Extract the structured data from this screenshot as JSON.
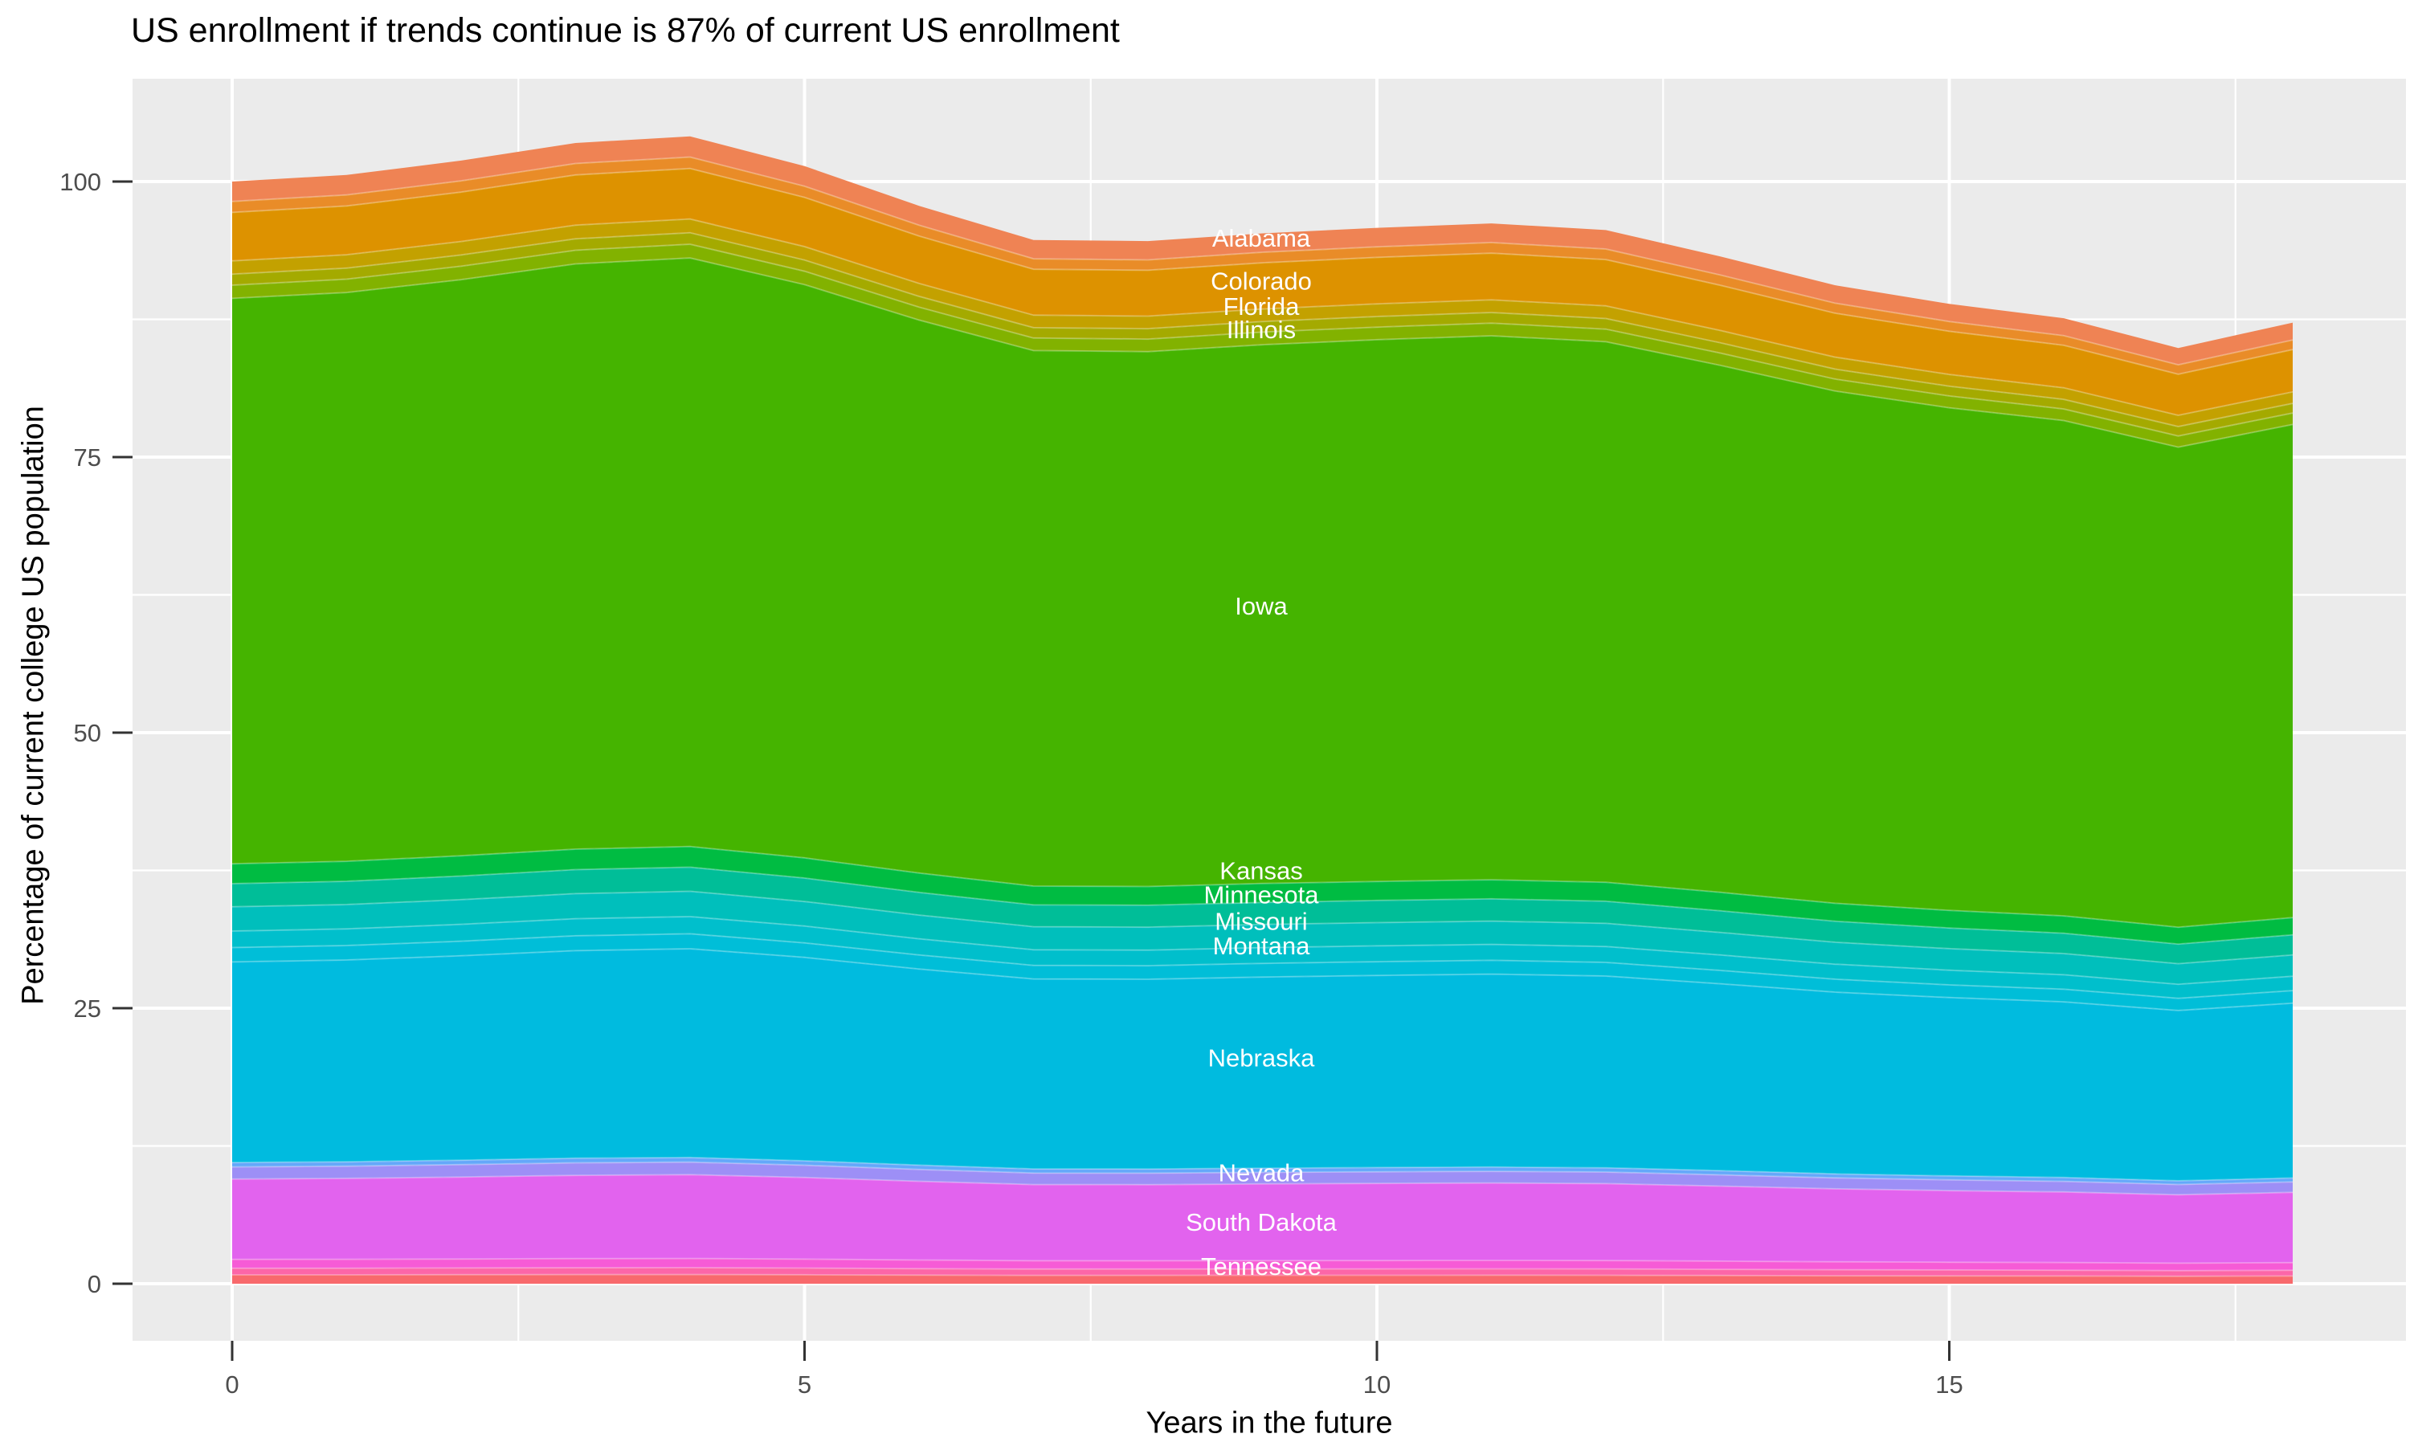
{
  "chart": {
    "title": "US enrollment if trends continue is 87% of current US enrollment",
    "xlabel": "Years in the future",
    "ylabel": "Percentage of current college US population"
  },
  "colors": {
    "page_bg": "#FFFFFF",
    "panel_bg": "#EBEBEB",
    "grid": "#FFFFFF",
    "tick_mark": "#333333",
    "tick_label": "#4D4D4D",
    "title_text": "#000000",
    "band_label_text": "#FFFFFF"
  },
  "axes": {
    "x": {
      "tick_values": [
        0,
        5,
        10,
        15
      ],
      "tick_labels": [
        "0",
        "5",
        "10",
        "15"
      ],
      "minor_values": [
        2.5,
        7.5,
        12.5,
        17.5
      ],
      "data_range": [
        0,
        18
      ]
    },
    "y": {
      "tick_values": [
        0,
        25,
        50,
        75,
        100
      ],
      "tick_labels": [
        "0",
        "25",
        "50",
        "75",
        "100"
      ],
      "minor_values": [
        12.5,
        37.5,
        62.5,
        87.5
      ],
      "display_range": [
        -5.2,
        109.3
      ]
    }
  },
  "chart_data": {
    "type": "area",
    "stacked": true,
    "title": "US enrollment if trends continue is 87% of current US enrollment",
    "xlabel": "Years in the future",
    "ylabel": "Percentage of current college US population",
    "xlim": [
      0,
      18
    ],
    "ylim_ticks": [
      0,
      100
    ],
    "grid": "white-on-grey, ggplot style",
    "legend_position": "none (labels drawn inside bands)",
    "x": [
      0,
      1,
      2,
      3,
      4,
      5,
      6,
      7,
      8,
      9,
      10,
      11,
      12,
      13,
      14,
      15,
      16,
      17,
      18
    ],
    "total_stack_pct": [
      100.0,
      100.6,
      101.9,
      103.5,
      104.1,
      101.4,
      97.8,
      94.7,
      94.6,
      95.3,
      95.8,
      96.2,
      95.6,
      93.2,
      90.6,
      88.9,
      87.6,
      84.9,
      87.2
    ],
    "end_value_pct_of_current": 87,
    "series": [
      {
        "name": "Alabama",
        "values": [
          1.8,
          1.8,
          1.8,
          1.9,
          1.9,
          1.8,
          1.8,
          1.7,
          1.7,
          1.7,
          1.7,
          1.7,
          1.7,
          1.7,
          1.6,
          1.6,
          1.6,
          1.5,
          1.6
        ]
      },
      {
        "name": "Colorado",
        "values": [
          4.4,
          4.4,
          4.5,
          4.6,
          4.6,
          4.5,
          4.3,
          4.2,
          4.2,
          4.2,
          4.2,
          4.2,
          4.2,
          4.1,
          4.0,
          3.9,
          3.9,
          3.7,
          3.8
        ]
      },
      {
        "name": "Florida",
        "values": [
          1.2,
          1.2,
          1.2,
          1.2,
          1.2,
          1.2,
          1.2,
          1.1,
          1.1,
          1.1,
          1.1,
          1.2,
          1.1,
          1.1,
          1.1,
          1.1,
          1.1,
          1.0,
          1.0
        ]
      },
      {
        "name": "Illinois",
        "values": [
          1.2,
          1.2,
          1.2,
          1.2,
          1.2,
          1.2,
          1.2,
          1.1,
          1.1,
          1.1,
          1.1,
          1.2,
          1.1,
          1.1,
          1.1,
          1.1,
          1.1,
          1.0,
          1.0
        ]
      },
      {
        "name": "Iowa",
        "values": [
          51.3,
          51.6,
          52.3,
          53.1,
          53.4,
          52.0,
          50.2,
          48.6,
          48.5,
          48.9,
          49.1,
          49.3,
          49.0,
          47.8,
          46.5,
          45.6,
          44.9,
          43.6,
          44.7
        ]
      },
      {
        "name": "Kansas",
        "values": [
          1.8,
          1.8,
          1.8,
          1.9,
          1.9,
          1.8,
          1.8,
          1.7,
          1.7,
          1.7,
          1.7,
          1.7,
          1.7,
          1.7,
          1.6,
          1.6,
          1.6,
          1.5,
          1.6
        ]
      },
      {
        "name": "Minnesota",
        "values": [
          2.1,
          2.1,
          2.1,
          2.2,
          2.2,
          2.1,
          2.1,
          2.0,
          2.0,
          2.0,
          2.0,
          2.0,
          2.0,
          2.0,
          1.9,
          1.9,
          1.8,
          1.8,
          1.8
        ]
      },
      {
        "name": "Missouri",
        "values": [
          2.2,
          2.2,
          2.2,
          2.3,
          2.3,
          2.2,
          2.2,
          2.1,
          2.1,
          2.1,
          2.1,
          2.1,
          2.1,
          2.1,
          2.0,
          2.0,
          1.9,
          1.9,
          1.9
        ]
      },
      {
        "name": "Montana",
        "values": [
          1.5,
          1.5,
          1.5,
          1.6,
          1.6,
          1.5,
          1.5,
          1.4,
          1.4,
          1.4,
          1.4,
          1.4,
          1.4,
          1.4,
          1.4,
          1.3,
          1.3,
          1.3,
          1.3
        ]
      },
      {
        "name": "Nebraska",
        "values": [
          18.2,
          18.3,
          18.5,
          18.8,
          18.9,
          18.5,
          17.8,
          17.2,
          17.2,
          17.3,
          17.4,
          17.5,
          17.4,
          17.0,
          16.5,
          16.2,
          15.9,
          15.5,
          15.9
        ]
      },
      {
        "name": "Nevada",
        "values": [
          1.1,
          1.1,
          1.1,
          1.1,
          1.1,
          1.1,
          1.1,
          1.0,
          1.0,
          1.0,
          1.1,
          1.1,
          1.1,
          1.0,
          1.0,
          1.0,
          1.0,
          0.9,
          1.0
        ]
      },
      {
        "name": "South Dakota",
        "values": [
          7.3,
          7.3,
          7.4,
          7.6,
          7.6,
          7.4,
          7.1,
          6.9,
          6.9,
          7.0,
          7.0,
          7.0,
          7.0,
          6.8,
          6.6,
          6.5,
          6.4,
          6.2,
          6.4
        ]
      },
      {
        "name": "Tennessee",
        "values": [
          0.8,
          0.8,
          0.8,
          0.8,
          0.8,
          0.8,
          0.8,
          0.8,
          0.8,
          0.8,
          0.8,
          0.8,
          0.8,
          0.7,
          0.7,
          0.7,
          0.7,
          0.7,
          0.7
        ]
      }
    ],
    "bands_top_to_bottom": [
      {
        "name": "Alabama",
        "color": "#EF8354",
        "share_pct": 1.8,
        "label": "Alabama",
        "label_y_pct": 94.9
      },
      {
        "name": "filler-orange",
        "color": "#E98C28",
        "share_pct": 1.0
      },
      {
        "name": "Colorado",
        "color": "#DD9200",
        "share_pct": 4.4,
        "label": "Colorado",
        "label_y_pct": 91.0
      },
      {
        "name": "Florida",
        "color": "#C3A100",
        "share_pct": 1.2,
        "label": "Florida",
        "label_y_pct": 88.7
      },
      {
        "name": "filler-olive",
        "color": "#A4AA00",
        "share_pct": 1.0
      },
      {
        "name": "Illinois",
        "color": "#82B200",
        "share_pct": 1.2,
        "label": "Illinois",
        "label_y_pct": 86.6
      },
      {
        "name": "Iowa",
        "color": "#45B400",
        "share_pct": 51.3,
        "label": "Iowa",
        "label_y_pct": 61.5
      },
      {
        "name": "Kansas",
        "color": "#00BC42",
        "share_pct": 1.8,
        "label": "Kansas",
        "label_y_pct": 37.5
      },
      {
        "name": "Minnesota",
        "color": "#00BE98",
        "share_pct": 2.1,
        "label": "Minnesota",
        "label_y_pct": 35.3
      },
      {
        "name": "Missouri",
        "color": "#00BFBC",
        "share_pct": 2.2,
        "label": "Missouri",
        "label_y_pct": 32.9
      },
      {
        "name": "Montana",
        "color": "#00BFCC",
        "share_pct": 1.5,
        "label": "Montana",
        "label_y_pct": 30.7
      },
      {
        "name": "filler-cyan",
        "color": "#00BED8",
        "share_pct": 1.3
      },
      {
        "name": "Nebraska",
        "color": "#00BBDF",
        "share_pct": 18.2,
        "label": "Nebraska",
        "label_y_pct": 20.5
      },
      {
        "name": "filler-blue",
        "color": "#64A8FA",
        "share_pct": 0.4
      },
      {
        "name": "Nevada",
        "color": "#9D8FF6",
        "share_pct": 1.1,
        "label": "Nevada",
        "label_y_pct": 10.1
      },
      {
        "name": "South Dakota",
        "color": "#E263EE",
        "share_pct": 7.3,
        "label": "South Dakota",
        "label_y_pct": 5.6
      },
      {
        "name": "Tennessee",
        "color": "#F65BD6",
        "share_pct": 0.8,
        "label": "Tennessee",
        "label_y_pct": 1.6
      },
      {
        "name": "filler-pink",
        "color": "#FC66A8",
        "share_pct": 0.6
      },
      {
        "name": "filler-red",
        "color": "#F8696C",
        "share_pct": 0.8
      }
    ]
  }
}
